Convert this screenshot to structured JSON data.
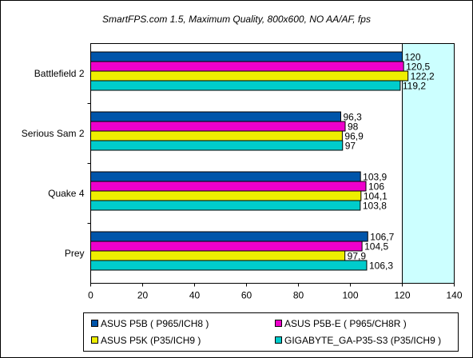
{
  "chart_data": {
    "type": "bar",
    "orientation": "horizontal",
    "title": "SmartFPS.com 1.5, Maximum Quality, 800x600, NO AA/AF, fps",
    "categories": [
      "Battlefield 2",
      "Serious Sam 2",
      "Quake 4",
      "Prey"
    ],
    "series": [
      {
        "name": "ASUS P5B ( P965/ICH8 )",
        "color": "#0055aa",
        "values": [
          120,
          96.3,
          103.9,
          106.7
        ],
        "labels": [
          "120",
          "96,3",
          "103,9",
          "106,7"
        ]
      },
      {
        "name": "ASUS P5B-E ( P965/CH8R )",
        "color": "#ee00cc",
        "values": [
          120.5,
          98,
          106,
          104.5
        ],
        "labels": [
          "120,5",
          "98",
          "106",
          "104,5"
        ]
      },
      {
        "name": "ASUS P5K (P35/ICH9 )",
        "color": "#eeee00",
        "values": [
          122.2,
          96.9,
          104.1,
          97.9
        ],
        "labels": [
          "122,2",
          "96,9",
          "104,1",
          "97,9"
        ]
      },
      {
        "name": "GIGABYTE_GA-P35-S3 (P35/ICH9 )",
        "color": "#00cccc",
        "values": [
          119.2,
          97,
          103.8,
          106.3
        ],
        "labels": [
          "119,2",
          "97",
          "103,8",
          "106,3"
        ]
      }
    ],
    "xlim": [
      0,
      140
    ],
    "xticks": [
      0,
      20,
      40,
      60,
      80,
      100,
      120,
      140
    ],
    "highlight_range": [
      120,
      140
    ],
    "highlight_color": "#ccffff",
    "grid": false,
    "legend_position": "bottom",
    "xlabel": "",
    "ylabel": ""
  }
}
